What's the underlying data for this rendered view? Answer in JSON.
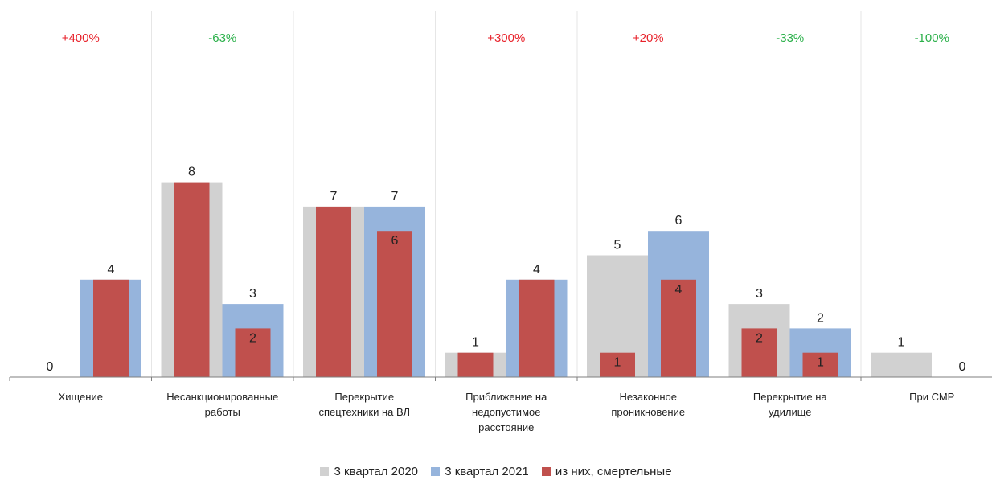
{
  "colors": {
    "series_2020": "#d1d1d1",
    "series_2021": "#96b4dc",
    "series_fatal": "#c0504d",
    "change_up": "#e8222b",
    "change_down": "#2bb04a",
    "axis": "#7f7f7f",
    "divider": "#e6e6e6"
  },
  "chart_data": {
    "type": "bar",
    "categories": [
      [
        "Хищение"
      ],
      [
        "Несанкционированные",
        "работы"
      ],
      [
        "Перекрытие",
        "спецтехники на ВЛ"
      ],
      [
        "Приближение на",
        "недопустимое",
        "расстояние"
      ],
      [
        "Незаконное",
        "проникновение"
      ],
      [
        "Перекрытие на",
        "удилище"
      ],
      [
        "При СМР"
      ]
    ],
    "changes": [
      "+400%",
      "-63%",
      "",
      "+300%",
      "+20%",
      "-33%",
      "-100%"
    ],
    "series": [
      {
        "name": "3 квартал 2020",
        "values": [
          0,
          8,
          7,
          1,
          5,
          3,
          1
        ]
      },
      {
        "name": "3 квартал 2021",
        "values": [
          4,
          3,
          7,
          4,
          6,
          2,
          0
        ]
      }
    ],
    "fatal": {
      "name": "из них, смертельные",
      "series_2020": [
        0,
        8,
        7,
        1,
        1,
        2,
        0
      ],
      "series_2021": [
        4,
        2,
        6,
        4,
        4,
        1,
        0
      ],
      "labels_2020": [
        null,
        null,
        null,
        null,
        "1",
        "2",
        null
      ],
      "labels_2021": [
        null,
        "2",
        "6",
        null,
        "4",
        "1",
        null
      ]
    },
    "ylim": [
      0,
      14
    ],
    "xlabel": "",
    "ylabel": "",
    "grid": false,
    "legend_position": "bottom"
  },
  "legend": {
    "item_2020": "3 квартал 2020",
    "item_2021": "3 квартал 2021",
    "item_fatal": "из них, смертельные"
  }
}
